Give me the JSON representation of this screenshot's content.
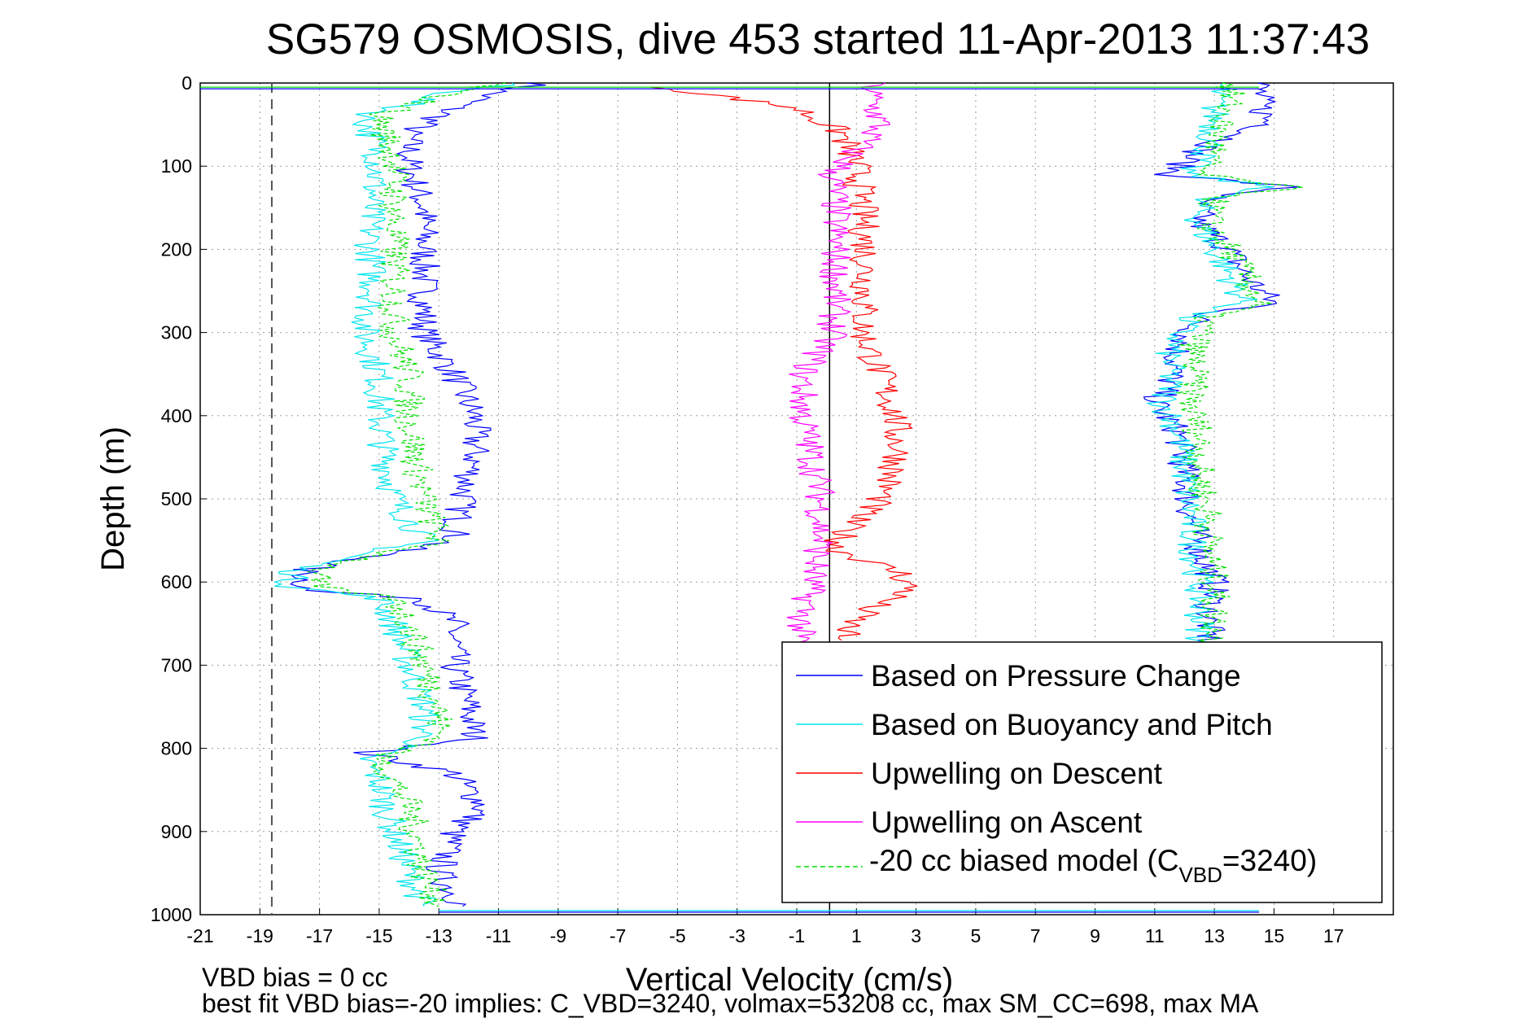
{
  "chart_data": {
    "type": "line",
    "title": "SG579 OSMOSIS, dive 453 started 11-Apr-2013 11:37:43",
    "xlabel": "Vertical Velocity (cm/s)",
    "ylabel": "Depth (m)",
    "xlim": [
      -21,
      19
    ],
    "ylim": [
      0,
      1000
    ],
    "y_reversed": true,
    "grid": true,
    "legend_position": "bottom-right",
    "x_ticks": [
      "-21",
      "-19",
      "-17",
      "-15",
      "-13",
      "-11",
      "-9",
      "-7",
      "-5",
      "-3",
      "-1",
      "1",
      "3",
      "5",
      "7",
      "9",
      "11",
      "13",
      "15",
      "17"
    ],
    "y_ticks": [
      "0",
      "100",
      "200",
      "300",
      "400",
      "500",
      "600",
      "700",
      "800",
      "900",
      "1000"
    ],
    "reference_lines": {
      "zero_velocity_x": 0.1,
      "dashed_x": -18.6
    },
    "footer_lines": [
      "VBD bias = 0 cc",
      "best fit VBD bias=-20 implies: C_VBD=3240, volmax=53208 cc, max SM_CC=698, max MA"
    ],
    "legend": {
      "pressure": "Based on Pressure Change",
      "buoyancy": "Based on Buoyancy and Pitch",
      "up_descent": "Upwelling on Descent",
      "up_ascent": "Upwelling on Ascent",
      "model_prefix": "-20 cc biased model (C",
      "model_sub": "VBD",
      "model_suffix": "=3240)"
    },
    "series": [
      {
        "name": "Based on Pressure Change",
        "color": "#0000ff",
        "group": "descent",
        "points": [
          [
            -9.5,
            0
          ],
          [
            -11,
            10
          ],
          [
            -12.5,
            30
          ],
          [
            -14,
            60
          ],
          [
            -14,
            100
          ],
          [
            -13.5,
            150
          ],
          [
            -13.5,
            200
          ],
          [
            -13.5,
            250
          ],
          [
            -13.5,
            300
          ],
          [
            -12.5,
            350
          ],
          [
            -11.8,
            400
          ],
          [
            -11.8,
            450
          ],
          [
            -12.2,
            500
          ],
          [
            -12.5,
            550
          ],
          [
            -17.5,
            585
          ],
          [
            -17.5,
            610
          ],
          [
            -13.5,
            620
          ],
          [
            -12.5,
            650
          ],
          [
            -12.5,
            700
          ],
          [
            -12,
            750
          ],
          [
            -11.8,
            790
          ],
          [
            -15.5,
            805
          ],
          [
            -12.5,
            830
          ],
          [
            -11.5,
            870
          ],
          [
            -12.5,
            900
          ],
          [
            -13,
            950
          ],
          [
            -12.2,
            990
          ]
        ]
      },
      {
        "name": "Based on Pressure Change",
        "color": "#0000ff",
        "group": "ascent",
        "points": [
          [
            14.5,
            0
          ],
          [
            14.5,
            20
          ],
          [
            14.8,
            50
          ],
          [
            12.5,
            80
          ],
          [
            11.5,
            110
          ],
          [
            15.5,
            125
          ],
          [
            12.5,
            140
          ],
          [
            12.5,
            170
          ],
          [
            13.5,
            200
          ],
          [
            14,
            230
          ],
          [
            15,
            265
          ],
          [
            12.5,
            280
          ],
          [
            11.8,
            320
          ],
          [
            11.5,
            360
          ],
          [
            11,
            385
          ],
          [
            11.8,
            420
          ],
          [
            12,
            470
          ],
          [
            12.2,
            520
          ],
          [
            12.5,
            560
          ],
          [
            13,
            600
          ],
          [
            12.8,
            640
          ],
          [
            12.8,
            680
          ]
        ]
      },
      {
        "name": "Based on Buoyancy and Pitch",
        "color": "#00e5ee",
        "group": "descent",
        "points": [
          [
            -10.5,
            0
          ],
          [
            -12.5,
            10
          ],
          [
            -15.5,
            40
          ],
          [
            -15,
            90
          ],
          [
            -15.3,
            150
          ],
          [
            -15.3,
            200
          ],
          [
            -15.2,
            250
          ],
          [
            -15.5,
            300
          ],
          [
            -15,
            350
          ],
          [
            -15,
            400
          ],
          [
            -14.8,
            450
          ],
          [
            -14.5,
            500
          ],
          [
            -13.5,
            550
          ],
          [
            -17.8,
            585
          ],
          [
            -18,
            605
          ],
          [
            -15,
            620
          ],
          [
            -14.5,
            650
          ],
          [
            -14,
            700
          ],
          [
            -13.5,
            750
          ],
          [
            -13.5,
            790
          ],
          [
            -15.5,
            810
          ],
          [
            -15,
            840
          ],
          [
            -14.8,
            870
          ],
          [
            -14.5,
            900
          ],
          [
            -14,
            950
          ],
          [
            -13.5,
            990
          ]
        ]
      },
      {
        "name": "Based on Buoyancy and Pitch",
        "color": "#00e5ee",
        "group": "ascent",
        "points": [
          [
            13.2,
            0
          ],
          [
            13,
            20
          ],
          [
            13,
            50
          ],
          [
            12.8,
            80
          ],
          [
            12,
            110
          ],
          [
            15,
            125
          ],
          [
            12.5,
            140
          ],
          [
            12.5,
            170
          ],
          [
            13,
            200
          ],
          [
            13.5,
            230
          ],
          [
            14,
            265
          ],
          [
            12.2,
            280
          ],
          [
            11.5,
            320
          ],
          [
            11.5,
            360
          ],
          [
            11.3,
            385
          ],
          [
            11.8,
            420
          ],
          [
            12,
            470
          ],
          [
            12.2,
            520
          ],
          [
            12.3,
            560
          ],
          [
            12.5,
            600
          ],
          [
            12.5,
            640
          ],
          [
            12.6,
            680
          ]
        ]
      },
      {
        "name": "Upwelling on Descent",
        "color": "#ff0000",
        "points": [
          [
            -5.5,
            5
          ],
          [
            -1,
            30
          ],
          [
            0.5,
            60
          ],
          [
            1,
            100
          ],
          [
            1.2,
            150
          ],
          [
            1.3,
            200
          ],
          [
            1.3,
            250
          ],
          [
            1.2,
            300
          ],
          [
            1.8,
            350
          ],
          [
            2.3,
            400
          ],
          [
            2.4,
            450
          ],
          [
            1.8,
            500
          ],
          [
            0.8,
            530
          ],
          [
            0.3,
            560
          ],
          [
            2.5,
            590
          ],
          [
            2.8,
            610
          ],
          [
            1.5,
            630
          ],
          [
            0.8,
            650
          ],
          [
            0.5,
            670
          ]
        ]
      },
      {
        "name": "Upwelling on Ascent",
        "color": "#ff00ff",
        "points": [
          [
            1.5,
            0
          ],
          [
            1.5,
            20
          ],
          [
            1.8,
            50
          ],
          [
            1,
            80
          ],
          [
            0.2,
            110
          ],
          [
            0.3,
            150
          ],
          [
            0.3,
            200
          ],
          [
            0.3,
            250
          ],
          [
            0.2,
            300
          ],
          [
            -0.8,
            350
          ],
          [
            -0.8,
            400
          ],
          [
            -0.5,
            450
          ],
          [
            -0.2,
            500
          ],
          [
            -0.2,
            550
          ],
          [
            -0.5,
            600
          ],
          [
            -0.8,
            640
          ],
          [
            -1,
            680
          ]
        ]
      },
      {
        "name": "-20 cc biased model (CVBD=3240)",
        "color": "#00dd00",
        "group": "descent",
        "points": [
          [
            -11,
            0
          ],
          [
            -12.5,
            10
          ],
          [
            -15,
            40
          ],
          [
            -14.5,
            90
          ],
          [
            -14.5,
            150
          ],
          [
            -14.5,
            200
          ],
          [
            -14.5,
            250
          ],
          [
            -14.5,
            300
          ],
          [
            -14,
            350
          ],
          [
            -14,
            400
          ],
          [
            -13.8,
            450
          ],
          [
            -13.5,
            500
          ],
          [
            -13,
            550
          ],
          [
            -17,
            585
          ],
          [
            -17.2,
            605
          ],
          [
            -14.5,
            620
          ],
          [
            -14,
            650
          ],
          [
            -13.5,
            700
          ],
          [
            -13,
            750
          ],
          [
            -13,
            790
          ],
          [
            -15,
            810
          ],
          [
            -14.5,
            840
          ],
          [
            -14,
            870
          ],
          [
            -13.8,
            900
          ],
          [
            -13.5,
            950
          ],
          [
            -13,
            990
          ]
        ]
      },
      {
        "name": "-20 cc biased model (CVBD=3240)",
        "color": "#00dd00",
        "group": "ascent",
        "points": [
          [
            13.5,
            0
          ],
          [
            13.5,
            20
          ],
          [
            13.2,
            50
          ],
          [
            13,
            80
          ],
          [
            12.5,
            110
          ],
          [
            15.5,
            125
          ],
          [
            13,
            140
          ],
          [
            12.8,
            170
          ],
          [
            13.5,
            200
          ],
          [
            14,
            230
          ],
          [
            14.5,
            265
          ],
          [
            12.8,
            280
          ],
          [
            12.3,
            320
          ],
          [
            12.3,
            360
          ],
          [
            12.2,
            385
          ],
          [
            12.5,
            420
          ],
          [
            12.5,
            470
          ],
          [
            12.8,
            520
          ],
          [
            12.8,
            560
          ],
          [
            13,
            600
          ],
          [
            13,
            640
          ],
          [
            13,
            680
          ]
        ]
      }
    ],
    "surface_transit": {
      "depth": 5,
      "x_from": -21,
      "x_to": 14.5
    },
    "bottom_transit": {
      "depth": 995,
      "x_from": -13,
      "x_to": 14.5
    }
  }
}
